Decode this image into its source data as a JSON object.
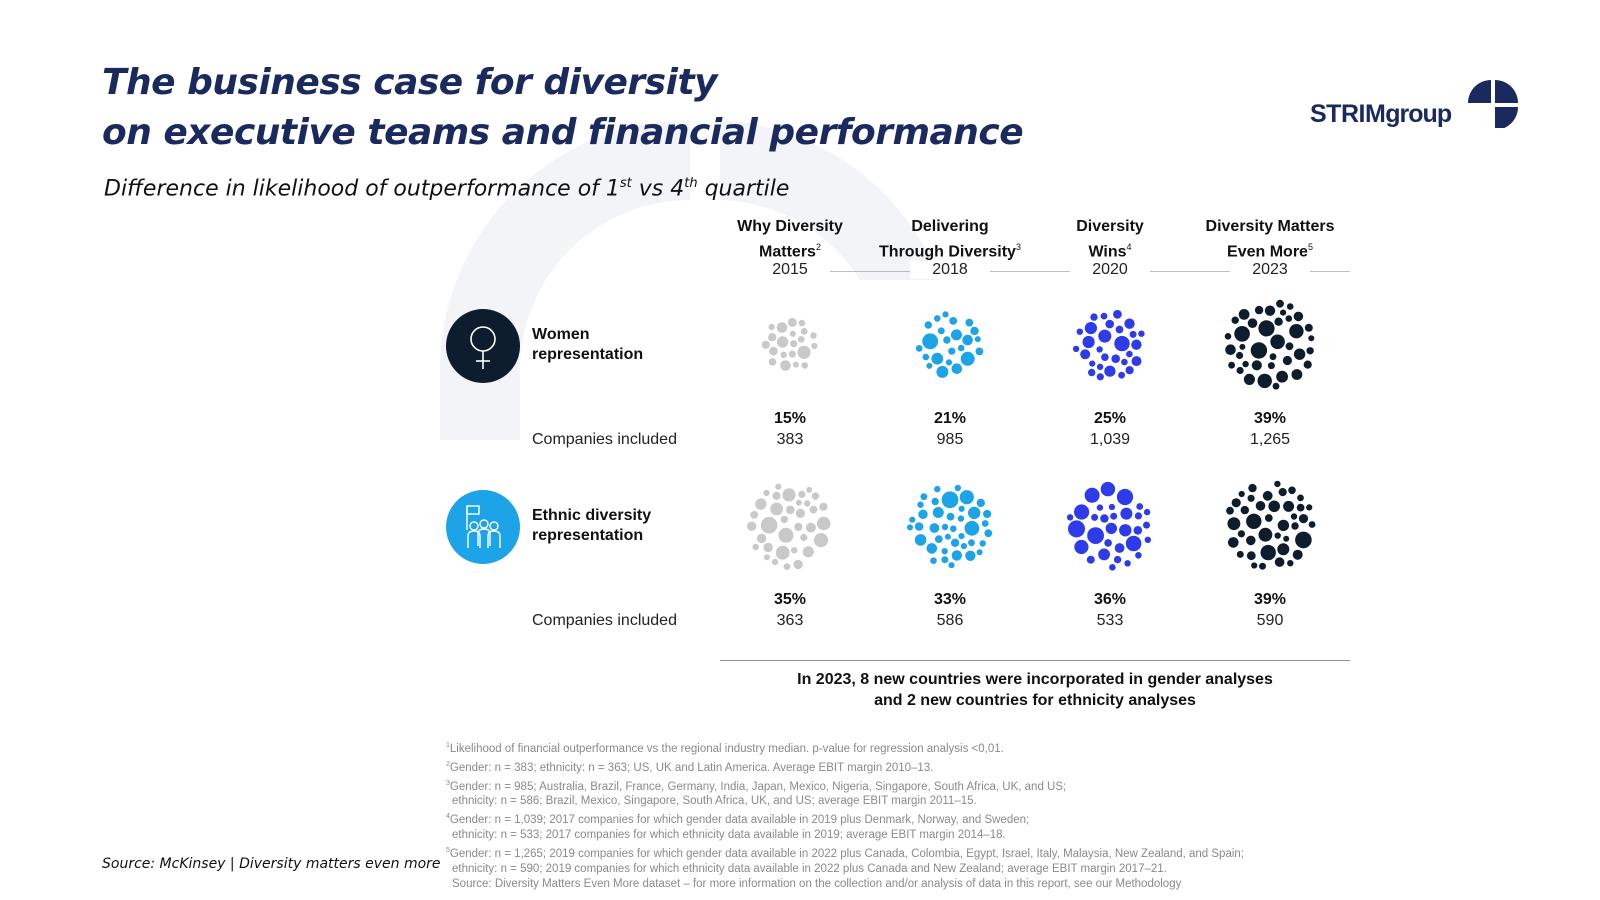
{
  "header": {
    "title": "The business case for diversity",
    "subtitle": "on executive teams and financial performance",
    "caption_pre": "Difference in likelihood of outperformance of 1",
    "caption_sup1": "st",
    "caption_mid": " vs 4",
    "caption_sup2": "th",
    "caption_post": " quartile"
  },
  "logo": {
    "text_a": "STRIM",
    "text_b": "group"
  },
  "colors": {
    "navy": "#1b2a5e",
    "grey_bubble": "#c9c9c9",
    "cyan_bubble": "#1da3e8",
    "blue_bubble": "#2e3be8",
    "dark_bubble": "#0e1d2e",
    "icon_women": "#0e1d2e",
    "icon_ethnic": "#1da3e8"
  },
  "chart_data": {
    "type": "bubble-cluster",
    "title": "Difference in likelihood of outperformance of 1st vs 4th quartile",
    "columns": [
      {
        "title_line1": "Why Diversity",
        "title_line2": "Matters",
        "footnote": "2",
        "year": "2015"
      },
      {
        "title_line1": "Delivering",
        "title_line2": "Through Diversity",
        "footnote": "3",
        "year": "2018"
      },
      {
        "title_line1": "Diversity",
        "title_line2": "Wins",
        "footnote": "4",
        "year": "2020"
      },
      {
        "title_line1": "Diversity Matters",
        "title_line2": "Even More",
        "footnote": "5",
        "year": "2023"
      }
    ],
    "series": [
      {
        "name_line1": "Women",
        "name_line2": "representation",
        "companies_label": "Companies included",
        "values": [
          15,
          21,
          25,
          39
        ],
        "value_labels": [
          "15%",
          "21%",
          "25%",
          "39%"
        ],
        "companies": [
          "383",
          "985",
          "1,039",
          "1,265"
        ]
      },
      {
        "name_line1": "Ethnic diversity",
        "name_line2": "representation",
        "companies_label": "Companies included",
        "values": [
          35,
          33,
          36,
          39
        ],
        "value_labels": [
          "35%",
          "33%",
          "36%",
          "39%"
        ],
        "companies": [
          "363",
          "586",
          "533",
          "590"
        ]
      }
    ],
    "note_line1": "In 2023, 8 new countries were incorporated in gender analyses",
    "note_line2": "and 2 new countries for ethnicity analyses"
  },
  "footnotes": {
    "f1": {
      "num": "1",
      "text": "Likelihood of financial outperformance vs the regional industry median. p-value for regression analysis <0,01."
    },
    "f2": {
      "num": "2",
      "text": "Gender: n = 383; ethnicity: n = 363; US, UK and Latin America. Average EBIT margin 2010–13."
    },
    "f3": {
      "num": "3",
      "text": "Gender: n = 985; Australia, Brazil, France, Germany, India, Japan, Mexico, Nigeria, Singapore, South Africa, UK, and US;",
      "cont": "ethnicity: n = 586; Brazil, Mexico, Singapore, South Africa, UK, and US; average EBIT margin 2011–15."
    },
    "f4": {
      "num": "4",
      "text": "Gender: n = 1,039; 2017 companies for which gender data available in 2019 plus Denmark, Norway, and Sweden;",
      "cont": "ethnicity: n = 533; 2017 companies for which ethnicity data available in 2019; average EBIT margin 2014–18."
    },
    "f5": {
      "num": "5",
      "text": "Gender: n = 1,265; 2019 companies for which gender data available in 2022 plus Canada, Colombia, Egypt, Israel, Italy, Malaysia, New Zealand, and Spain;",
      "cont": "ethnicity: n = 590; 2019 companies for which ethnicity data available in 2022 plus Canada and New Zealand; average EBIT margin 2017–21."
    },
    "source": "Source: Diversity Matters Even More dataset – for more information on the collection and/or analysis of data in this report, see our Methodology"
  },
  "source_line": "Source: McKinsey | Diversity matters even more"
}
